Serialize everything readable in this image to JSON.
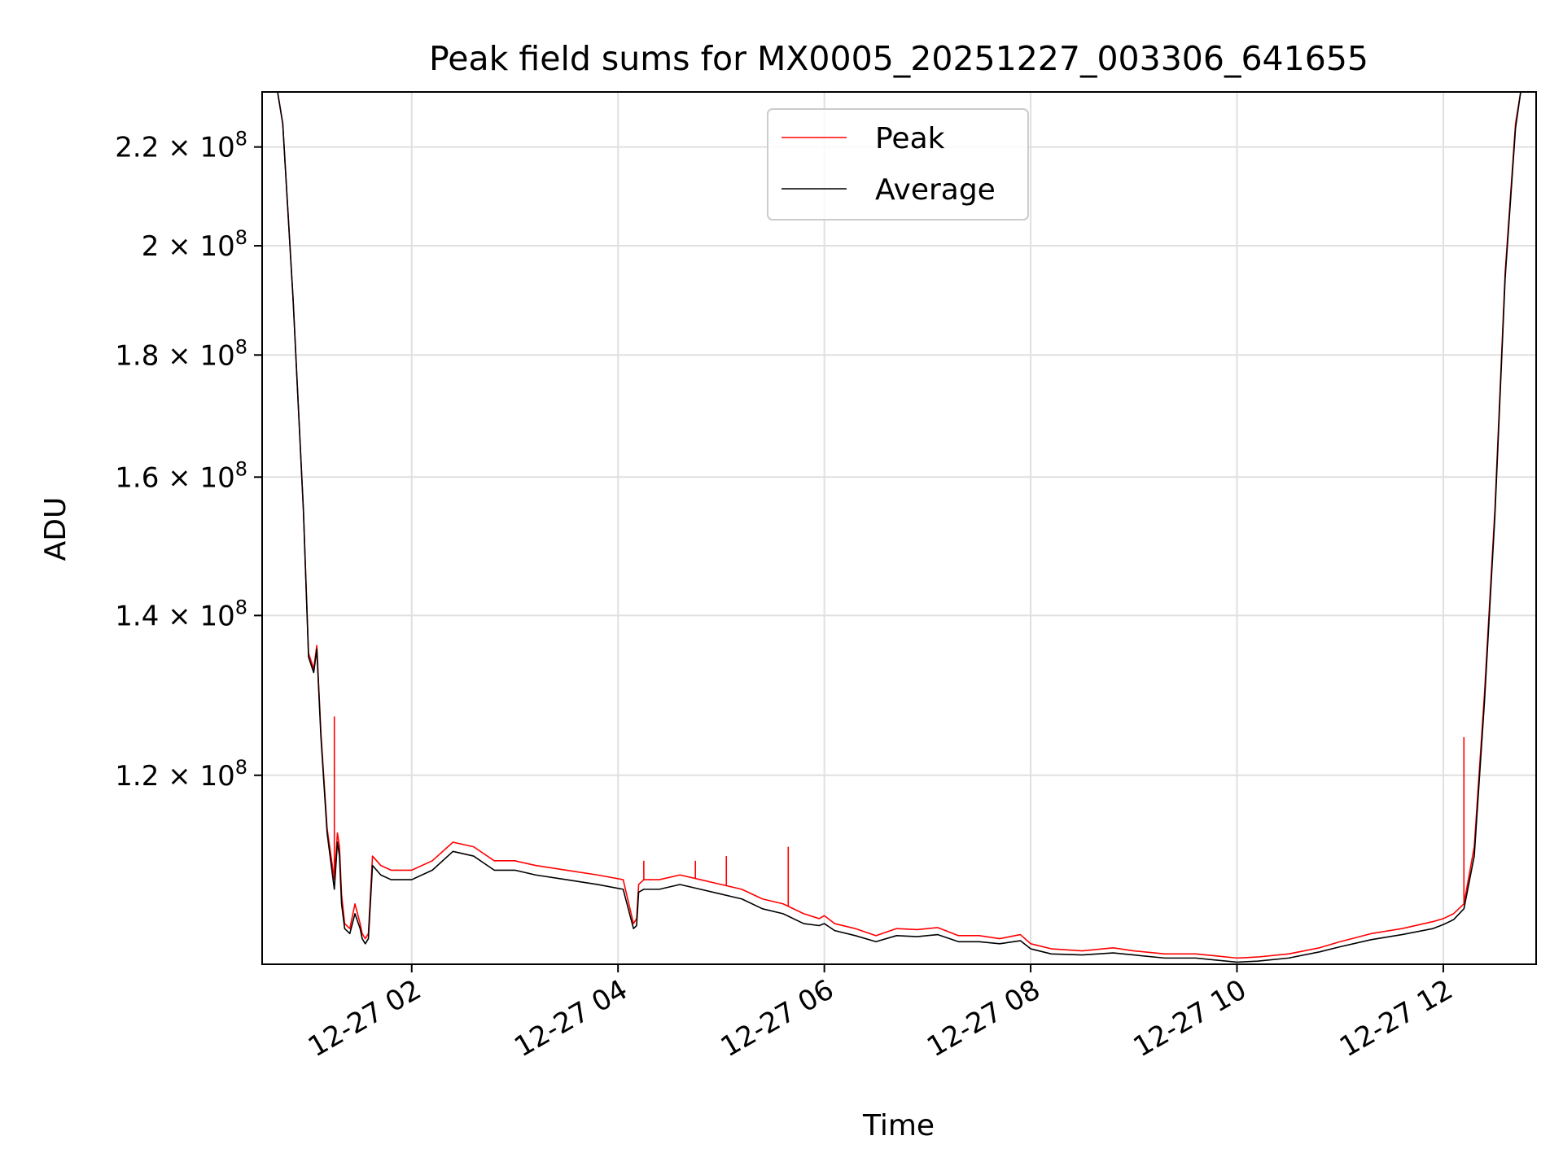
{
  "chart_data": {
    "type": "line",
    "title": "Peak field sums for MX0005_20251227_003306_641655",
    "xlabel": "Time",
    "ylabel": "ADU",
    "y_scale": "log",
    "xlim_hours": [
      0.55,
      12.9
    ],
    "ylim": [
      100000000,
      232000000
    ],
    "grid": true,
    "legend_position": "top-center",
    "x_ticks": [
      {
        "value": 2,
        "label": "12-27 02"
      },
      {
        "value": 4,
        "label": "12-27 04"
      },
      {
        "value": 6,
        "label": "12-27 06"
      },
      {
        "value": 8,
        "label": "12-27 08"
      },
      {
        "value": 10,
        "label": "12-27 10"
      },
      {
        "value": 12,
        "label": "12-27 12"
      }
    ],
    "y_ticks": [
      {
        "value": 120000000,
        "mantissa": "1.2",
        "base": "10",
        "exp": "8"
      },
      {
        "value": 140000000,
        "mantissa": "1.4",
        "base": "10",
        "exp": "8"
      },
      {
        "value": 160000000,
        "mantissa": "1.6",
        "base": "10",
        "exp": "8"
      },
      {
        "value": 180000000,
        "mantissa": "1.8",
        "base": "10",
        "exp": "8"
      },
      {
        "value": 200000000,
        "mantissa": "2",
        "base": "10",
        "exp": "8"
      },
      {
        "value": 220000000,
        "mantissa": "2.2",
        "base": "10",
        "exp": "8"
      }
    ],
    "series": [
      {
        "name": "Peak",
        "color": "#ff0000",
        "x_hours": [
          0.55,
          0.7,
          0.75,
          0.85,
          0.95,
          1.0,
          1.05,
          1.08,
          1.12,
          1.18,
          1.25,
          1.28,
          1.3,
          1.32,
          1.35,
          1.4,
          1.45,
          1.5,
          1.52,
          1.55,
          1.58,
          1.62,
          1.7,
          1.8,
          2.0,
          2.2,
          2.4,
          2.6,
          2.8,
          3.0,
          3.2,
          3.5,
          3.8,
          4.05,
          4.15,
          4.18,
          4.2,
          4.25,
          4.4,
          4.6,
          4.8,
          5.0,
          5.2,
          5.4,
          5.6,
          5.8,
          5.95,
          6.0,
          6.1,
          6.3,
          6.5,
          6.7,
          6.9,
          7.1,
          7.3,
          7.5,
          7.7,
          7.9,
          8.0,
          8.2,
          8.5,
          8.8,
          9.0,
          9.3,
          9.6,
          9.8,
          10.0,
          10.2,
          10.5,
          10.8,
          11.0,
          11.3,
          11.6,
          11.9,
          12.0,
          12.1,
          12.2,
          12.3,
          12.4,
          12.5,
          12.6,
          12.7,
          12.75,
          12.9
        ],
        "y": [
          232000000,
          232000000,
          225000000,
          190000000,
          155000000,
          135000000,
          133000000,
          136000000,
          125000000,
          114000000,
          108500000,
          113500000,
          112000000,
          107000000,
          104000000,
          103500000,
          106000000,
          104000000,
          103000000,
          102500000,
          103000000,
          111000000,
          110000000,
          109500000,
          109500000,
          110500000,
          112500000,
          112000000,
          110500000,
          110500000,
          110000000,
          109500000,
          109000000,
          108500000,
          104000000,
          104500000,
          108000000,
          108500000,
          108500000,
          109000000,
          108500000,
          108000000,
          107500000,
          106500000,
          106000000,
          105000000,
          104500000,
          104800000,
          104000000,
          103500000,
          102800000,
          103500000,
          103400000,
          103600000,
          102800000,
          102800000,
          102500000,
          102900000,
          102000000,
          101500000,
          101300000,
          101600000,
          101300000,
          101000000,
          101000000,
          100800000,
          100600000,
          100700000,
          101000000,
          101600000,
          102200000,
          103000000,
          103500000,
          104200000,
          104500000,
          105000000,
          106000000,
          112000000,
          130000000,
          155000000,
          195000000,
          225000000,
          232000000,
          232000000
        ],
        "spikes": [
          {
            "x_hours": 1.25,
            "y": 127000000
          },
          {
            "x_hours": 4.25,
            "y": 110500000
          },
          {
            "x_hours": 4.75,
            "y": 110500000
          },
          {
            "x_hours": 5.05,
            "y": 111000000
          },
          {
            "x_hours": 5.65,
            "y": 112000000
          },
          {
            "x_hours": 12.2,
            "y": 124500000
          }
        ]
      },
      {
        "name": "Average",
        "color": "#000000",
        "x_hours": [
          0.55,
          0.7,
          0.75,
          0.85,
          0.95,
          1.0,
          1.05,
          1.08,
          1.12,
          1.18,
          1.25,
          1.28,
          1.3,
          1.32,
          1.35,
          1.4,
          1.45,
          1.5,
          1.52,
          1.55,
          1.58,
          1.62,
          1.7,
          1.8,
          2.0,
          2.2,
          2.4,
          2.6,
          2.8,
          3.0,
          3.2,
          3.5,
          3.8,
          4.05,
          4.15,
          4.18,
          4.2,
          4.25,
          4.4,
          4.6,
          4.8,
          5.0,
          5.2,
          5.4,
          5.6,
          5.8,
          5.95,
          6.0,
          6.1,
          6.3,
          6.5,
          6.7,
          6.9,
          7.1,
          7.3,
          7.5,
          7.7,
          7.9,
          8.0,
          8.2,
          8.5,
          8.8,
          9.0,
          9.3,
          9.6,
          9.8,
          10.0,
          10.2,
          10.5,
          10.8,
          11.0,
          11.3,
          11.6,
          11.9,
          12.0,
          12.1,
          12.2,
          12.3,
          12.4,
          12.5,
          12.6,
          12.7,
          12.75,
          12.9
        ],
        "y": [
          232000000,
          232000000,
          225000000,
          190000000,
          155000000,
          134500000,
          132500000,
          135500000,
          124500000,
          113500000,
          107500000,
          112500000,
          111000000,
          106000000,
          103500000,
          103000000,
          105000000,
          103500000,
          102500000,
          102000000,
          102500000,
          110000000,
          109000000,
          108500000,
          108500000,
          109500000,
          111500000,
          111000000,
          109500000,
          109500000,
          109000000,
          108500000,
          108000000,
          107500000,
          103500000,
          103800000,
          107200000,
          107500000,
          107500000,
          108000000,
          107500000,
          107000000,
          106500000,
          105500000,
          105000000,
          104000000,
          103800000,
          104000000,
          103300000,
          102800000,
          102200000,
          102800000,
          102700000,
          102900000,
          102200000,
          102200000,
          102000000,
          102300000,
          101500000,
          101000000,
          100900000,
          101100000,
          100900000,
          100600000,
          100600000,
          100400000,
          100200000,
          100300000,
          100600000,
          101200000,
          101700000,
          102400000,
          102900000,
          103500000,
          103900000,
          104400000,
          105500000,
          111000000,
          129000000,
          154000000,
          194000000,
          224000000,
          232000000,
          232000000
        ]
      }
    ]
  }
}
